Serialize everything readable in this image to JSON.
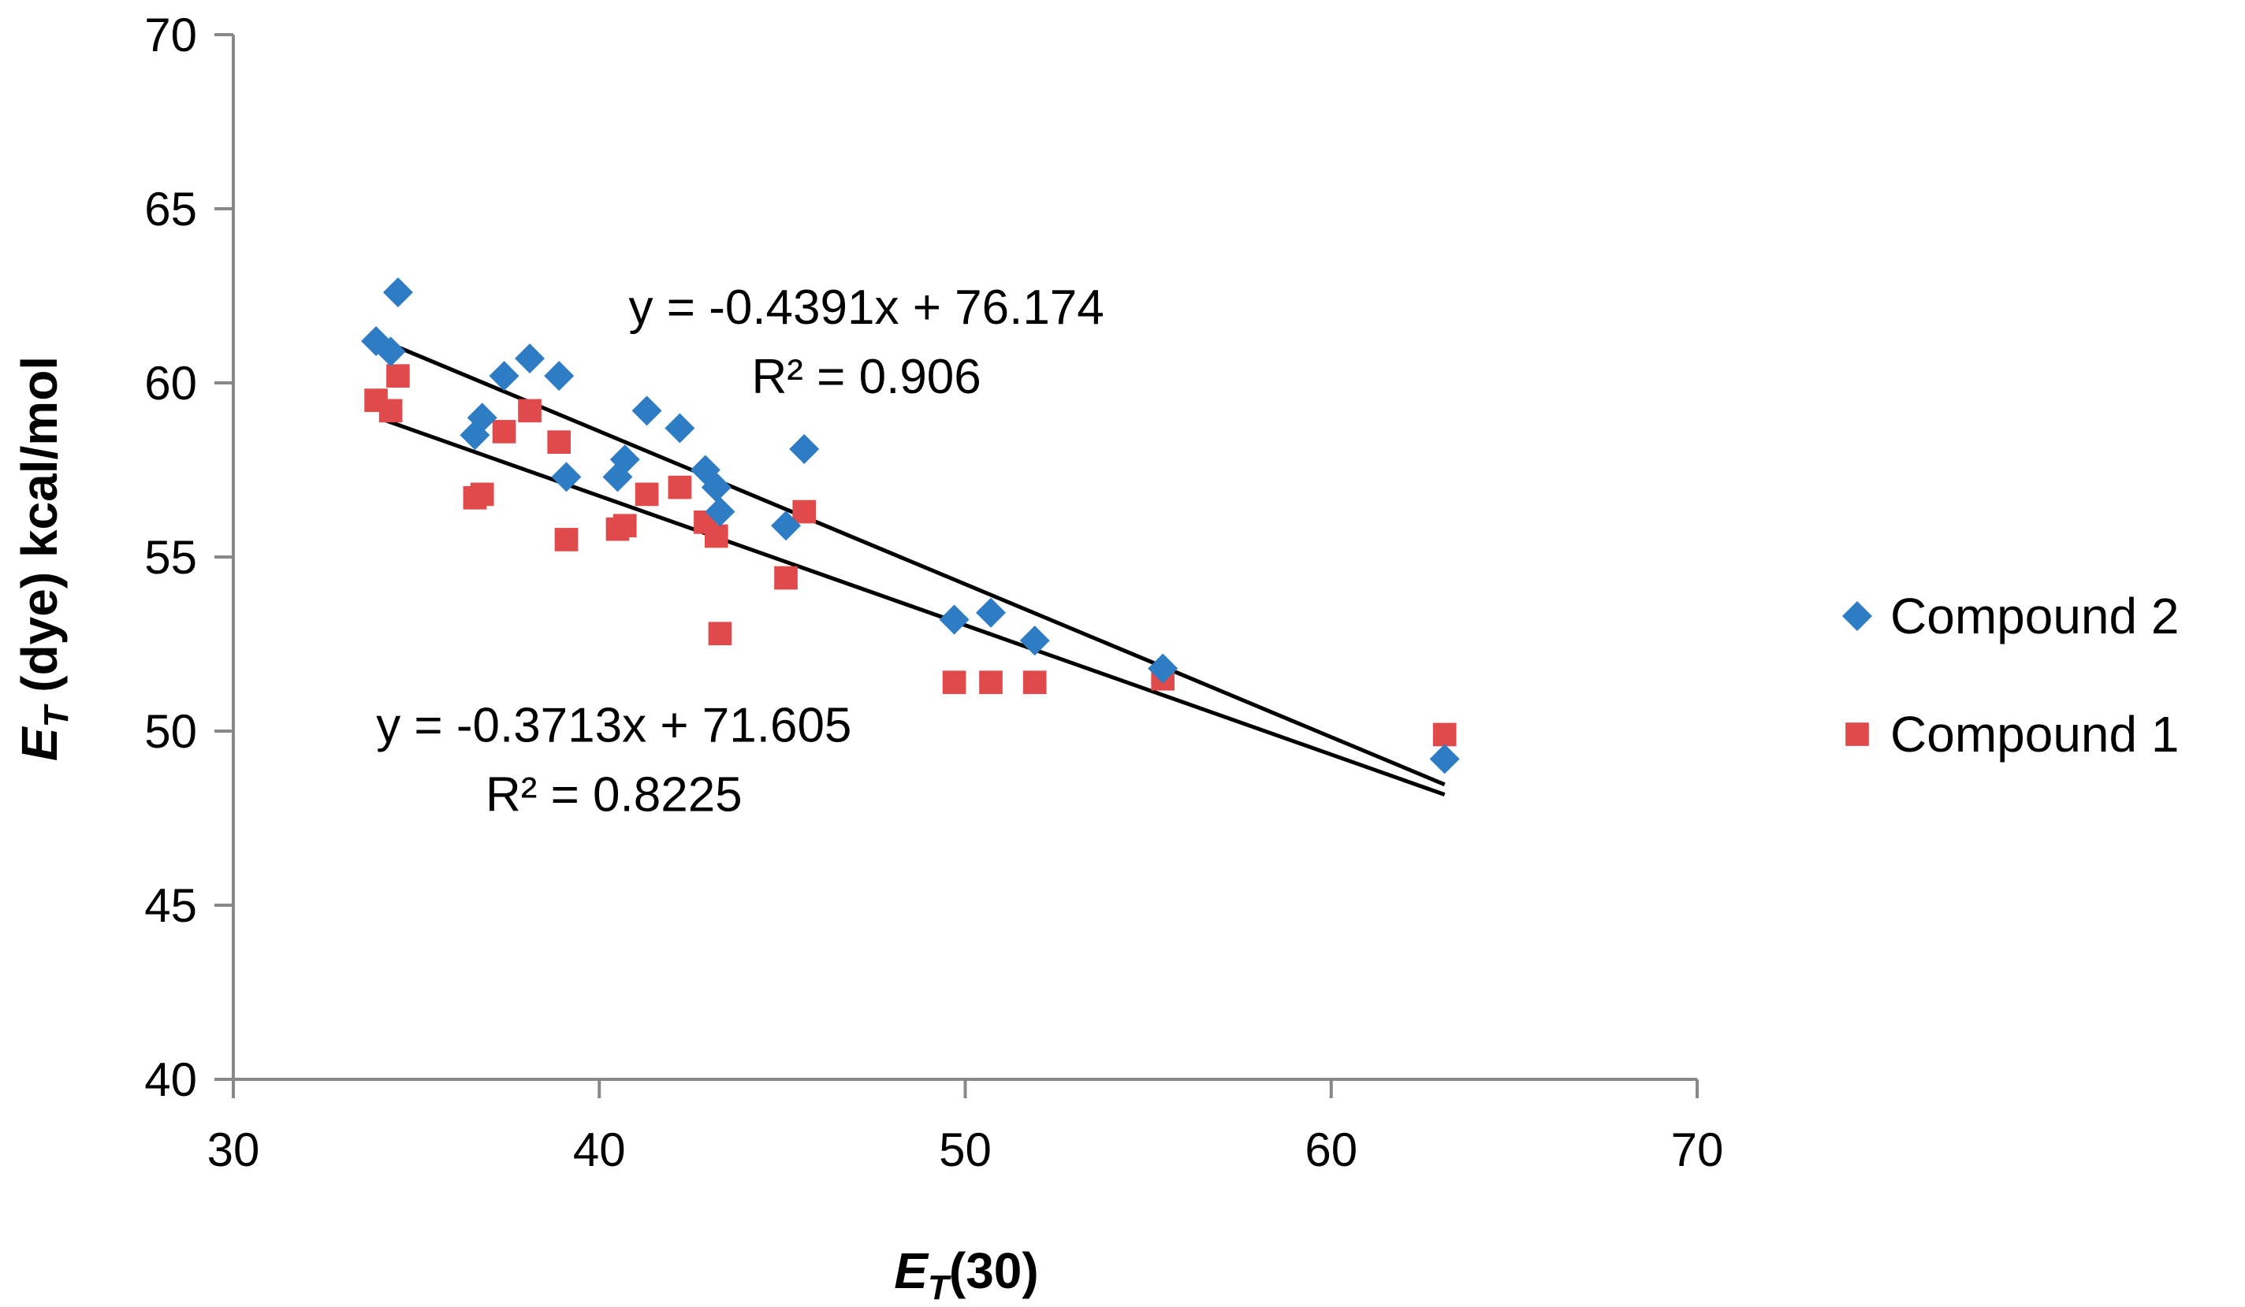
{
  "chart_data": {
    "type": "scatter",
    "title": "",
    "xlabel": "E_T(30)",
    "xlabel_main": "E",
    "xlabel_sub": "T",
    "xlabel_rest": "(30)",
    "ylabel": "E_T (dye) kcal/mol",
    "ylabel_main": "E",
    "ylabel_sub": "T",
    "ylabel_rest": " (dye) kcal/mol",
    "xlim": [
      30,
      70
    ],
    "ylim": [
      40,
      70
    ],
    "x_ticks": [
      30,
      40,
      50,
      60,
      70
    ],
    "y_ticks": [
      40,
      45,
      50,
      55,
      60,
      65,
      70
    ],
    "x_tick_labels": [
      "30",
      "40",
      "50",
      "60",
      "70"
    ],
    "y_tick_labels": [
      "40",
      "45",
      "50",
      "55",
      "60",
      "65",
      "70"
    ],
    "grid": false,
    "legend_position": "right",
    "series": [
      {
        "name": "Compound 2",
        "marker": "diamond",
        "color": "#2e7cc4",
        "x": [
          33.9,
          34.3,
          34.5,
          36.6,
          36.8,
          37.4,
          38.1,
          38.9,
          39.1,
          40.5,
          40.7,
          41.3,
          42.2,
          42.9,
          43.2,
          43.3,
          45.1,
          45.6,
          49.7,
          50.7,
          51.9,
          55.4,
          63.1
        ],
        "y": [
          61.2,
          60.9,
          62.6,
          58.5,
          59.0,
          60.2,
          60.7,
          60.2,
          57.3,
          57.3,
          57.8,
          59.2,
          58.7,
          57.5,
          57.0,
          56.3,
          55.9,
          58.1,
          53.2,
          53.4,
          52.6,
          51.8,
          49.2
        ],
        "trendline": {
          "slope": -0.4391,
          "intercept": 76.174,
          "x_range": [
            34.0,
            63.1
          ],
          "equation": "y = -0.4391x + 76.174",
          "r2_label": "R² = 0.906"
        }
      },
      {
        "name": "Compound 1",
        "marker": "square",
        "color": "#e04a4a",
        "x": [
          33.9,
          34.3,
          34.5,
          36.6,
          36.8,
          37.4,
          38.1,
          38.9,
          39.1,
          40.5,
          40.7,
          41.3,
          42.2,
          42.9,
          43.2,
          43.3,
          45.1,
          45.6,
          49.7,
          50.7,
          51.9,
          55.4,
          63.1
        ],
        "y": [
          59.5,
          59.2,
          60.2,
          56.7,
          56.8,
          58.6,
          59.2,
          58.3,
          55.5,
          55.8,
          55.9,
          56.8,
          57.0,
          56.0,
          55.6,
          52.8,
          54.4,
          56.3,
          51.4,
          51.4,
          51.4,
          51.5,
          49.9
        ],
        "trendline": {
          "slope": -0.3713,
          "intercept": 71.605,
          "x_range": [
            34.0,
            63.1
          ],
          "equation": "y = -0.3713x + 71.605",
          "r2_label": "R² = 0.8225"
        }
      }
    ],
    "annotations": [
      {
        "series": "Compound 2",
        "equation": "y = -0.4391x + 76.174",
        "r2": "R² = 0.906",
        "anchor_x": 47.3,
        "anchor_y": 61.7
      },
      {
        "series": "Compound 1",
        "equation": "y = -0.3713x + 71.605",
        "r2": "R² = 0.8225",
        "anchor_x": 40.4,
        "anchor_y": 49.7
      }
    ]
  }
}
